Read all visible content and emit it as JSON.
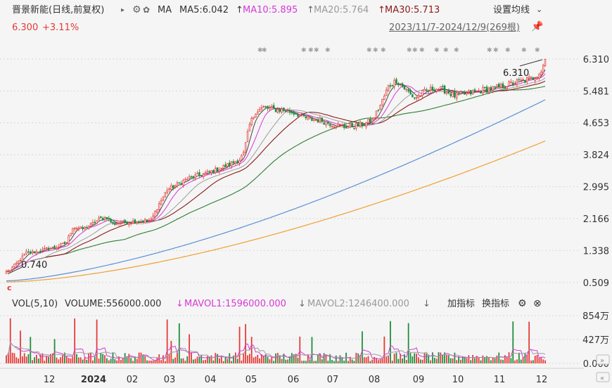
{
  "header": {
    "stock_name": "晋景新能(日线,前复权)",
    "arrow": "▸",
    "ma_label": "MA",
    "ma5": "MA5:6.042",
    "ma10": "MA10:5.895",
    "ma20": "MA20:5.764",
    "ma30": "MA30:5.713",
    "up_arrow": "↑",
    "settings_label": "设置均线",
    "price": "6.300",
    "change": "+3.11%",
    "date_range": "2023/11/7-2024/12/9(269根)"
  },
  "volume_header": {
    "vol_label": "VOL(5,10)",
    "volume": "VOLUME:556000.000",
    "mavol1": "MAVOL1:1596000.000",
    "mavol2": "MAVOL2:1246400.000",
    "down_arrow": "↓",
    "add_indicator": "加指标",
    "switch_indicator": "换指标"
  },
  "colors": {
    "up": "#e53935",
    "down": "#1e8c3a",
    "ma5": "#444444",
    "ma10": "#d63ad6",
    "ma20": "#9e9e9e",
    "ma30": "#8b1a1a",
    "ma60": "#2e7d32",
    "ma120": "#5b8fd6",
    "ma250": "#f0a030"
  },
  "chart_data": {
    "type": "candlestick",
    "price_axis_ticks": [
      "6.310",
      "5.481",
      "4.653",
      "3.824",
      "2.995",
      "2.166",
      "1.338",
      "0.509"
    ],
    "price_range": [
      0.36,
      6.6
    ],
    "volume_axis_ticks": [
      "854万",
      "427万",
      "0.000"
    ],
    "volume_max": 880,
    "x_tick_labels": [
      "12",
      "2024",
      "02",
      "03",
      "04",
      "05",
      "06",
      "07",
      "08",
      "09",
      "10",
      "11",
      "12"
    ],
    "max_label": "6.310",
    "min_label": "0.740",
    "bar_count": 269,
    "price_keypoints": [
      [
        0,
        0.74
      ],
      [
        5,
        1.0
      ],
      [
        10,
        1.28
      ],
      [
        15,
        1.3
      ],
      [
        20,
        1.38
      ],
      [
        25,
        1.42
      ],
      [
        30,
        1.55
      ],
      [
        33,
        1.95
      ],
      [
        38,
        1.9
      ],
      [
        42,
        2.0
      ],
      [
        46,
        2.15
      ],
      [
        50,
        2.2
      ],
      [
        53,
        2.02
      ],
      [
        56,
        2.06
      ],
      [
        60,
        2.08
      ],
      [
        66,
        2.1
      ],
      [
        72,
        2.12
      ],
      [
        76,
        2.55
      ],
      [
        80,
        2.92
      ],
      [
        85,
        3.05
      ],
      [
        90,
        3.2
      ],
      [
        95,
        3.28
      ],
      [
        100,
        3.35
      ],
      [
        103,
        3.4
      ],
      [
        108,
        3.5
      ],
      [
        112,
        3.6
      ],
      [
        116,
        3.7
      ],
      [
        118,
        3.85
      ],
      [
        121,
        4.6
      ],
      [
        124,
        4.95
      ],
      [
        128,
        5.05
      ],
      [
        133,
        5.0
      ],
      [
        138,
        4.98
      ],
      [
        144,
        4.9
      ],
      [
        150,
        4.75
      ],
      [
        156,
        4.72
      ],
      [
        162,
        4.62
      ],
      [
        168,
        4.55
      ],
      [
        174,
        4.58
      ],
      [
        178,
        4.62
      ],
      [
        182,
        4.72
      ],
      [
        186,
        5.1
      ],
      [
        190,
        5.6
      ],
      [
        194,
        5.75
      ],
      [
        198,
        5.55
      ],
      [
        203,
        5.3
      ],
      [
        208,
        5.45
      ],
      [
        213,
        5.55
      ],
      [
        218,
        5.5
      ],
      [
        223,
        5.35
      ],
      [
        228,
        5.4
      ],
      [
        233,
        5.45
      ],
      [
        238,
        5.52
      ],
      [
        243,
        5.55
      ],
      [
        248,
        5.62
      ],
      [
        253,
        5.7
      ],
      [
        258,
        5.75
      ],
      [
        262,
        5.82
      ],
      [
        266,
        6.0
      ],
      [
        268,
        6.3
      ]
    ],
    "volume_spike_indices": [
      2,
      7,
      12,
      24,
      34,
      45,
      80,
      82,
      86,
      91,
      116,
      119,
      122,
      146,
      152,
      177,
      188,
      191,
      200,
      252,
      260
    ]
  }
}
